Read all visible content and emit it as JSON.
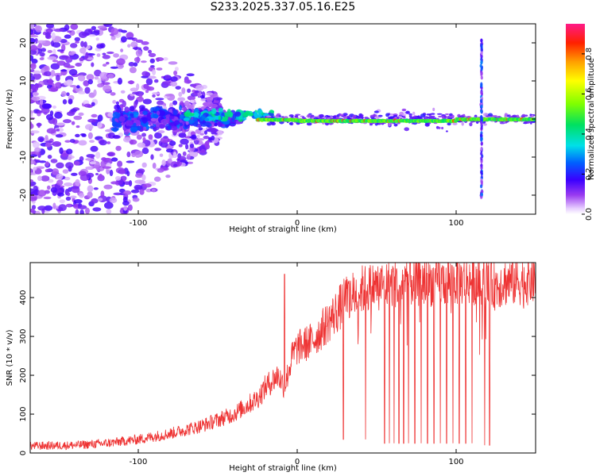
{
  "title": "S233.2025.337.05.16.E25",
  "chart_data": [
    {
      "type": "heatmap",
      "title": "S233.2025.337.05.16.E25",
      "xlabel": "Height of straight line (km)",
      "ylabel": "Frequency (Hz)",
      "xlim": [
        -168,
        150
      ],
      "ylim": [
        -25,
        25
      ],
      "xticks": [
        -100,
        0,
        100
      ],
      "yticks": [
        -20,
        -10,
        0,
        10,
        20
      ],
      "colorbar": {
        "label": "Normalized spectral amplitude",
        "range": [
          0,
          0.95
        ],
        "ticks": [
          0.0,
          0.2,
          0.4,
          0.6,
          0.8
        ],
        "tick_labels": [
          "0.0",
          "0.2",
          "0.4",
          "0.6",
          "0.8"
        ]
      },
      "features": [
        {
          "x_range": [
            -168,
            -110
          ],
          "freq_spread": 25,
          "amplitude": 0.12,
          "description": "broad scattered noise"
        },
        {
          "x_range": [
            -110,
            -40
          ],
          "freq_spread": 6,
          "amplitude": 0.2
        },
        {
          "x_range": [
            -40,
            -20
          ],
          "freq_center": 1,
          "amplitude": 0.35
        },
        {
          "x_range": [
            -20,
            150
          ],
          "freq_center": 0,
          "amplitude": 0.55,
          "description": "narrow line near 0 Hz"
        },
        {
          "x": 116,
          "description": "vertical broadband stripe",
          "freq_spread": 20
        }
      ]
    },
    {
      "type": "line",
      "xlabel": "Height of straight line (km)",
      "ylabel": "SNR (10 * v/v)",
      "xlim": [
        -168,
        150
      ],
      "ylim": [
        0,
        490
      ],
      "xticks": [
        -100,
        0,
        100
      ],
      "yticks": [
        0,
        100,
        200,
        300,
        400
      ],
      "series": [
        {
          "name": "SNR",
          "color": "#ee3333",
          "points": [
            [
              -168,
              18
            ],
            [
              -140,
              20
            ],
            [
              -120,
              25
            ],
            [
              -100,
              35
            ],
            [
              -80,
              50
            ],
            [
              -60,
              70
            ],
            [
              -40,
              100
            ],
            [
              -25,
              140
            ],
            [
              -20,
              170
            ],
            [
              -12,
              200
            ],
            [
              -8,
              170
            ],
            [
              -3,
              250
            ],
            [
              0,
              270
            ],
            [
              10,
              290
            ],
            [
              20,
              340
            ],
            [
              30,
              390
            ],
            [
              40,
              420
            ],
            [
              50,
              430
            ],
            [
              60,
              435
            ],
            [
              70,
              440
            ],
            [
              80,
              440
            ],
            [
              90,
              440
            ],
            [
              100,
              442
            ],
            [
              110,
              445
            ],
            [
              118,
              440
            ],
            [
              124,
              430
            ],
            [
              130,
              440
            ],
            [
              140,
              442
            ],
            [
              150,
              445
            ]
          ],
          "spikes": [
            [
              -8,
              460
            ]
          ],
          "drops": [
            [
              29,
              35
            ],
            [
              43,
              35
            ],
            [
              55,
              25
            ],
            [
              58,
              25
            ],
            [
              61,
              25
            ],
            [
              64,
              25
            ],
            [
              67,
              25
            ],
            [
              70,
              25
            ],
            [
              74,
              25
            ],
            [
              78,
              25
            ],
            [
              82,
              25
            ],
            [
              86,
              25
            ],
            [
              90,
              25
            ],
            [
              94,
              25
            ],
            [
              98,
              25
            ],
            [
              102,
              25
            ],
            [
              106,
              25
            ],
            [
              110,
              25
            ],
            [
              118,
              20
            ],
            [
              121,
              20
            ]
          ]
        }
      ]
    }
  ]
}
